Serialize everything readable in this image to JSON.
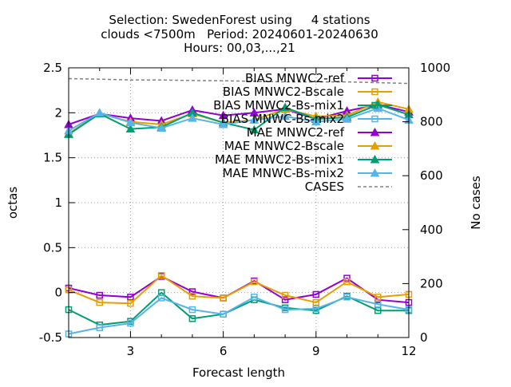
{
  "chart_data": {
    "type": "line",
    "title_lines": [
      "Selection: SwedenForest using     4 stations",
      "clouds <7500m   Period: 20240601-20240630",
      "Hours: 00,03,...,21"
    ],
    "xlabel": "Forecast length",
    "ylabel": "octas",
    "y2label": "No cases",
    "xlim": [
      1,
      12
    ],
    "ylim": [
      -0.5,
      2.5
    ],
    "y2lim": [
      0,
      1000
    ],
    "x_ticks": [
      3,
      6,
      9,
      12
    ],
    "y_ticks": [
      -0.5,
      0,
      0.5,
      1,
      1.5,
      2,
      2.5
    ],
    "y_tick_labels": [
      "-0.5",
      "0",
      "0.5",
      "1",
      "1.5",
      "2",
      "2.5"
    ],
    "y2_ticks": [
      0,
      200,
      400,
      600,
      800,
      1000
    ],
    "grid": true,
    "legend_position": "top-right",
    "x": [
      1,
      2,
      3,
      4,
      5,
      6,
      7,
      8,
      9,
      10,
      11,
      12
    ],
    "series": [
      {
        "name": "BIAS MNWC2-ref",
        "axis": "y1",
        "color": "#9400d3",
        "marker": "square-open",
        "values": [
          0.05,
          -0.03,
          -0.05,
          0.18,
          0.01,
          -0.06,
          0.13,
          -0.08,
          -0.02,
          0.16,
          -0.08,
          -0.11
        ]
      },
      {
        "name": "BIAS MNWC2-Bscale",
        "axis": "y1",
        "color": "#e69f00",
        "marker": "square-open",
        "values": [
          0.03,
          -0.11,
          -0.12,
          0.19,
          -0.04,
          -0.06,
          0.12,
          -0.03,
          -0.11,
          0.12,
          -0.05,
          -0.02
        ]
      },
      {
        "name": "BIAS MNWC2-Bs-mix1",
        "axis": "y1",
        "color": "#009e73",
        "marker": "square-open",
        "values": [
          -0.19,
          -0.36,
          -0.32,
          0.0,
          -0.29,
          -0.24,
          -0.08,
          -0.17,
          -0.2,
          -0.04,
          -0.2,
          -0.2
        ]
      },
      {
        "name": "BIAS MNWC-Bs-mix2",
        "axis": "y1",
        "color": "#56b4e9",
        "marker": "square-open",
        "values": [
          -0.46,
          -0.39,
          -0.34,
          -0.06,
          -0.19,
          -0.24,
          -0.05,
          -0.19,
          -0.18,
          -0.05,
          -0.13,
          -0.19
        ]
      },
      {
        "name": "MAE MNWC2-ref",
        "axis": "y1",
        "color": "#9400d3",
        "marker": "triangle-filled",
        "values": [
          1.87,
          1.99,
          1.94,
          1.91,
          2.03,
          1.97,
          2.0,
          2.04,
          1.93,
          2.02,
          2.09,
          2.01
        ]
      },
      {
        "name": "MAE MNWC2-Bscale",
        "axis": "y1",
        "color": "#e69f00",
        "marker": "triangle-filled",
        "values": [
          1.77,
          1.99,
          1.9,
          1.87,
          1.99,
          1.89,
          1.92,
          2.04,
          1.96,
          1.97,
          2.12,
          2.04
        ]
      },
      {
        "name": "MAE MNWC2-Bs-mix1",
        "axis": "y1",
        "color": "#009e73",
        "marker": "triangle-filled",
        "values": [
          1.76,
          1.99,
          1.82,
          1.84,
          2.0,
          1.89,
          1.81,
          2.06,
          1.93,
          1.95,
          2.09,
          1.98
        ]
      },
      {
        "name": "MAE MNWC-Bs-mix2",
        "axis": "y1",
        "color": "#56b4e9",
        "marker": "triangle-filled",
        "values": [
          1.8,
          2.0,
          1.89,
          1.83,
          1.94,
          1.87,
          1.92,
          1.96,
          1.9,
          1.93,
          2.05,
          1.92
        ]
      },
      {
        "name": "CASES",
        "axis": "y2",
        "color": "#808080",
        "marker": "none",
        "dash": "dashed",
        "values": [
          960,
          958,
          955,
          955,
          953,
          952,
          950,
          948,
          948,
          948,
          945,
          942
        ]
      }
    ]
  }
}
